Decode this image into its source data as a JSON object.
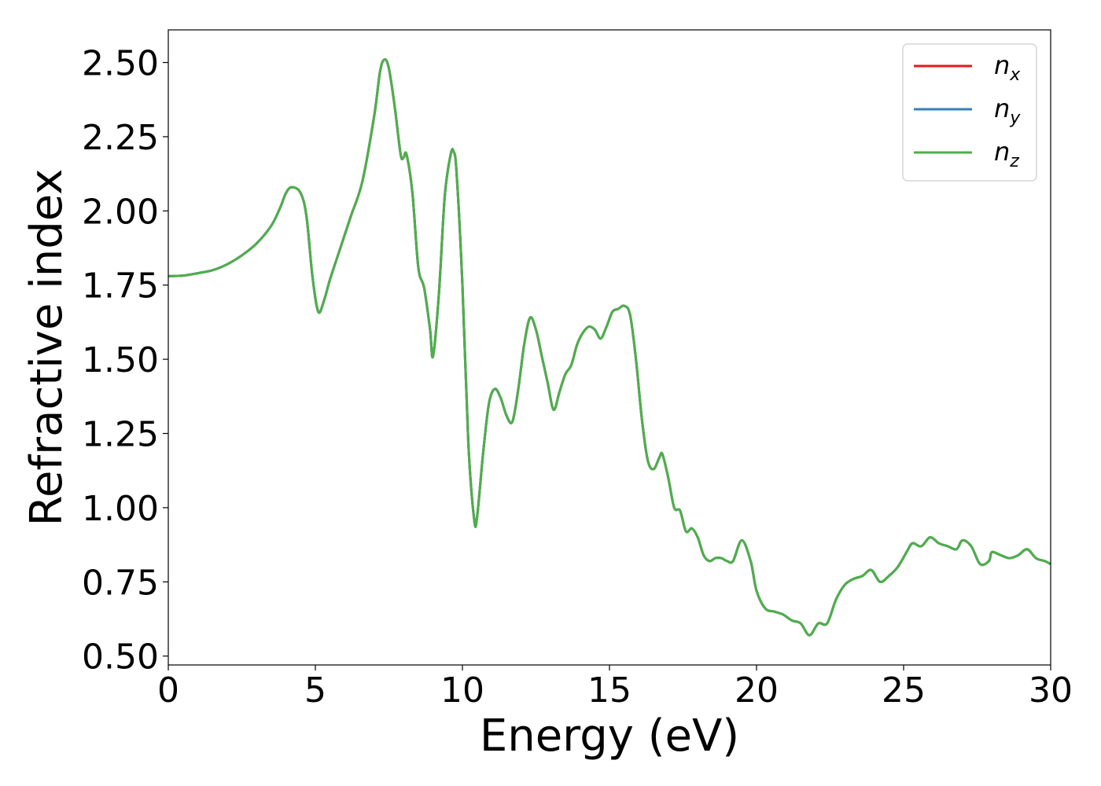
{
  "chart_data": {
    "type": "line",
    "title": "",
    "xlabel": "Energy (eV)",
    "ylabel": "Refractive index",
    "xlim": [
      0,
      30
    ],
    "ylim": [
      0.47,
      2.61
    ],
    "grid": false,
    "legend_position": "top-right",
    "xticks": [
      {
        "value": 0,
        "label": "0"
      },
      {
        "value": 5,
        "label": "5"
      },
      {
        "value": 10,
        "label": "10"
      },
      {
        "value": 15,
        "label": "15"
      },
      {
        "value": 20,
        "label": "20"
      },
      {
        "value": 25,
        "label": "25"
      },
      {
        "value": 30,
        "label": "30"
      }
    ],
    "yticks": [
      {
        "value": 0.5,
        "label": "0.50"
      },
      {
        "value": 0.75,
        "label": "0.75"
      },
      {
        "value": 1.0,
        "label": "1.00"
      },
      {
        "value": 1.25,
        "label": "1.25"
      },
      {
        "value": 1.5,
        "label": "1.50"
      },
      {
        "value": 1.75,
        "label": "1.75"
      },
      {
        "value": 2.0,
        "label": "2.00"
      },
      {
        "value": 2.25,
        "label": "2.25"
      },
      {
        "value": 2.5,
        "label": "2.50"
      }
    ],
    "x": [
      0,
      0.5,
      1.0,
      1.5,
      2.0,
      2.5,
      3.0,
      3.5,
      3.8,
      4.0,
      4.2,
      4.5,
      4.7,
      4.9,
      5.1,
      5.3,
      5.5,
      5.8,
      6.2,
      6.6,
      7.0,
      7.2,
      7.35,
      7.5,
      7.7,
      7.9,
      8.0,
      8.1,
      8.3,
      8.5,
      8.7,
      8.9,
      9.0,
      9.2,
      9.4,
      9.6,
      9.7,
      9.8,
      10.0,
      10.2,
      10.4,
      10.5,
      10.7,
      10.9,
      11.1,
      11.3,
      11.5,
      11.7,
      11.9,
      12.1,
      12.3,
      12.5,
      12.7,
      12.9,
      13.1,
      13.3,
      13.5,
      13.7,
      13.9,
      14.1,
      14.3,
      14.5,
      14.7,
      14.9,
      15.1,
      15.3,
      15.5,
      15.7,
      15.9,
      16.1,
      16.3,
      16.5,
      16.7,
      16.8,
      17.0,
      17.2,
      17.4,
      17.6,
      17.8,
      18.0,
      18.2,
      18.4,
      18.6,
      18.8,
      19.0,
      19.2,
      19.5,
      19.8,
      20.0,
      20.3,
      20.6,
      20.9,
      21.2,
      21.5,
      21.8,
      22.1,
      22.4,
      22.7,
      23.0,
      23.3,
      23.6,
      23.9,
      24.2,
      24.5,
      24.8,
      25.1,
      25.3,
      25.6,
      25.9,
      26.2,
      26.5,
      26.8,
      27.0,
      27.3,
      27.6,
      27.9,
      28.0,
      28.3,
      28.6,
      28.9,
      29.2,
      29.5,
      29.8,
      30.0
    ],
    "series": [
      {
        "name": "n_x",
        "color": "#e41a1c",
        "y": [
          1.78,
          1.782,
          1.79,
          1.8,
          1.82,
          1.85,
          1.89,
          1.95,
          2.01,
          2.06,
          2.08,
          2.06,
          1.98,
          1.78,
          1.66,
          1.7,
          1.77,
          1.86,
          1.98,
          2.1,
          2.32,
          2.47,
          2.51,
          2.48,
          2.35,
          2.19,
          2.18,
          2.19,
          2.06,
          1.81,
          1.74,
          1.6,
          1.51,
          1.72,
          2.05,
          2.19,
          2.2,
          2.13,
          1.75,
          1.22,
          0.96,
          0.97,
          1.18,
          1.35,
          1.4,
          1.37,
          1.31,
          1.29,
          1.4,
          1.55,
          1.64,
          1.6,
          1.51,
          1.42,
          1.33,
          1.39,
          1.45,
          1.48,
          1.55,
          1.59,
          1.61,
          1.6,
          1.57,
          1.61,
          1.66,
          1.67,
          1.68,
          1.65,
          1.5,
          1.3,
          1.16,
          1.13,
          1.17,
          1.18,
          1.1,
          1.0,
          0.99,
          0.92,
          0.93,
          0.9,
          0.84,
          0.82,
          0.83,
          0.83,
          0.82,
          0.82,
          0.89,
          0.82,
          0.72,
          0.66,
          0.65,
          0.64,
          0.62,
          0.61,
          0.57,
          0.61,
          0.61,
          0.69,
          0.74,
          0.76,
          0.77,
          0.79,
          0.75,
          0.77,
          0.8,
          0.85,
          0.88,
          0.87,
          0.9,
          0.88,
          0.87,
          0.86,
          0.89,
          0.87,
          0.81,
          0.82,
          0.85,
          0.84,
          0.83,
          0.84,
          0.86,
          0.83,
          0.82,
          0.81
        ]
      },
      {
        "name": "n_y",
        "color": "#377eb8",
        "y": [
          1.78,
          1.782,
          1.79,
          1.8,
          1.82,
          1.85,
          1.89,
          1.95,
          2.01,
          2.06,
          2.08,
          2.06,
          1.98,
          1.78,
          1.66,
          1.7,
          1.77,
          1.86,
          1.98,
          2.1,
          2.32,
          2.47,
          2.51,
          2.48,
          2.35,
          2.19,
          2.18,
          2.19,
          2.06,
          1.81,
          1.74,
          1.6,
          1.51,
          1.72,
          2.05,
          2.19,
          2.2,
          2.13,
          1.75,
          1.22,
          0.96,
          0.97,
          1.18,
          1.35,
          1.4,
          1.37,
          1.31,
          1.29,
          1.4,
          1.55,
          1.64,
          1.6,
          1.51,
          1.42,
          1.33,
          1.39,
          1.45,
          1.48,
          1.55,
          1.59,
          1.61,
          1.6,
          1.57,
          1.61,
          1.66,
          1.67,
          1.68,
          1.65,
          1.5,
          1.3,
          1.16,
          1.13,
          1.17,
          1.18,
          1.1,
          1.0,
          0.99,
          0.92,
          0.93,
          0.9,
          0.84,
          0.82,
          0.83,
          0.83,
          0.82,
          0.82,
          0.89,
          0.82,
          0.72,
          0.66,
          0.65,
          0.64,
          0.62,
          0.61,
          0.57,
          0.61,
          0.61,
          0.69,
          0.74,
          0.76,
          0.77,
          0.79,
          0.75,
          0.77,
          0.8,
          0.85,
          0.88,
          0.87,
          0.9,
          0.88,
          0.87,
          0.86,
          0.89,
          0.87,
          0.81,
          0.82,
          0.85,
          0.84,
          0.83,
          0.84,
          0.86,
          0.83,
          0.82,
          0.81
        ]
      },
      {
        "name": "n_z",
        "color": "#4daf4a",
        "y": [
          1.78,
          1.782,
          1.79,
          1.8,
          1.82,
          1.85,
          1.89,
          1.95,
          2.01,
          2.06,
          2.08,
          2.06,
          1.98,
          1.78,
          1.66,
          1.7,
          1.77,
          1.86,
          1.98,
          2.1,
          2.32,
          2.47,
          2.51,
          2.48,
          2.35,
          2.19,
          2.18,
          2.19,
          2.06,
          1.81,
          1.74,
          1.6,
          1.51,
          1.72,
          2.05,
          2.19,
          2.2,
          2.13,
          1.75,
          1.22,
          0.96,
          0.97,
          1.18,
          1.35,
          1.4,
          1.37,
          1.31,
          1.29,
          1.4,
          1.55,
          1.64,
          1.6,
          1.51,
          1.42,
          1.33,
          1.39,
          1.45,
          1.48,
          1.55,
          1.59,
          1.61,
          1.6,
          1.57,
          1.61,
          1.66,
          1.67,
          1.68,
          1.65,
          1.5,
          1.3,
          1.16,
          1.13,
          1.17,
          1.18,
          1.1,
          1.0,
          0.99,
          0.92,
          0.93,
          0.9,
          0.84,
          0.82,
          0.83,
          0.83,
          0.82,
          0.82,
          0.89,
          0.82,
          0.72,
          0.66,
          0.65,
          0.64,
          0.62,
          0.61,
          0.57,
          0.61,
          0.61,
          0.69,
          0.74,
          0.76,
          0.77,
          0.79,
          0.75,
          0.77,
          0.8,
          0.85,
          0.88,
          0.87,
          0.9,
          0.88,
          0.87,
          0.86,
          0.89,
          0.87,
          0.81,
          0.82,
          0.85,
          0.84,
          0.83,
          0.84,
          0.86,
          0.83,
          0.82,
          0.81
        ]
      }
    ],
    "legend": [
      {
        "base": "n",
        "sub": "x",
        "color": "#e41a1c"
      },
      {
        "base": "n",
        "sub": "y",
        "color": "#377eb8"
      },
      {
        "base": "n",
        "sub": "z",
        "color": "#4daf4a"
      }
    ]
  }
}
